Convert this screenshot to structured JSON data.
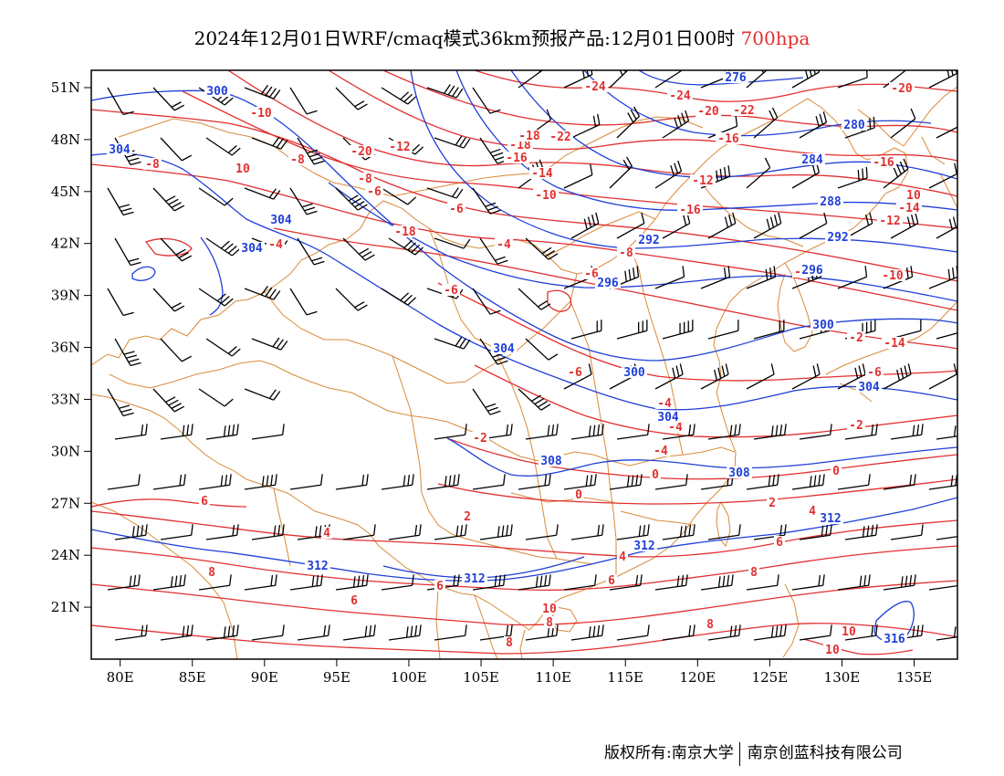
{
  "title": {
    "text": "2024年12月01日WRF/cmaq模式36km预报产品:12月01日00时",
    "level": "700hpa",
    "level_color": "#e23030"
  },
  "map": {
    "lon_range": [
      78,
      138
    ],
    "lat_range": [
      18,
      52
    ],
    "lon_ticks": [
      "80E",
      "85E",
      "90E",
      "95E",
      "100E",
      "105E",
      "110E",
      "115E",
      "120E",
      "125E",
      "130E",
      "135E"
    ],
    "lat_ticks": [
      "51N",
      "48N",
      "45N",
      "42N",
      "39N",
      "36N",
      "33N",
      "30N",
      "27N",
      "24N",
      "21N"
    ],
    "temperature_color": "#e23030",
    "height_color": "#1f3fd8",
    "border_color": "#d98a3a",
    "wind_color": "#000000",
    "temperature_labels": [
      "-24",
      "-24",
      "-20",
      "-22",
      "-20",
      "-18",
      "-18",
      "-22",
      "-16",
      "-16",
      "-12",
      "-14",
      "-16",
      "-12",
      "-10",
      "-10",
      "-8",
      "-8",
      "-6",
      "-4",
      "-8",
      "-6",
      "-8",
      "-6",
      "-14",
      "-12",
      "-10",
      "-8",
      "-6",
      "-4",
      "-2",
      "-6",
      "-4",
      "-6",
      "-4",
      "-2",
      "-4",
      "-2",
      "0",
      "0",
      "0",
      "2",
      "2",
      "4",
      "4",
      "6",
      "4",
      "6",
      "6",
      "8",
      "6",
      "6",
      "8",
      "8",
      "8",
      "8",
      "10",
      "10",
      "10",
      "10",
      "10",
      "-20",
      "-18",
      "-16",
      "-14",
      "-2"
    ],
    "height_labels": [
      "300",
      "304",
      "304",
      "304",
      "276",
      "280",
      "284",
      "288",
      "292",
      "292",
      "296",
      "296",
      "300",
      "300",
      "304",
      "304",
      "304",
      "308",
      "308",
      "312",
      "312",
      "312",
      "312",
      "316"
    ]
  },
  "footer": {
    "left": "版权所有:南京大学",
    "right": "南京创蓝科技有限公司"
  }
}
